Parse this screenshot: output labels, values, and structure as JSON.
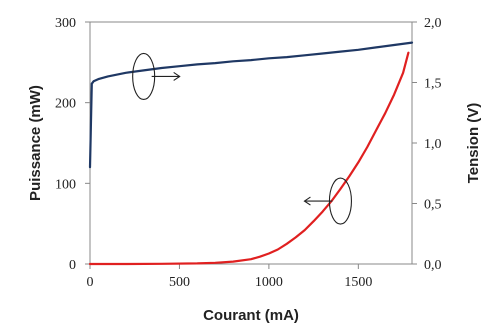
{
  "chart_data": {
    "type": "line",
    "title": "",
    "xlabel": "Courant (mA)",
    "ylabel_left": "Puissance (mW)",
    "ylabel_right": "Tension (V)",
    "xlim": [
      0,
      1800
    ],
    "ylim_left": [
      0,
      300
    ],
    "ylim_right": [
      0,
      2.0
    ],
    "x_ticks": [
      0,
      500,
      1000,
      1500
    ],
    "x_tick_labels": [
      "0",
      "500",
      "1000",
      "1500"
    ],
    "y_left_ticks": [
      0,
      100,
      200,
      300
    ],
    "y_left_tick_labels": [
      "0",
      "100",
      "200",
      "300"
    ],
    "y_right_ticks": [
      0,
      0.5,
      1.0,
      1.5,
      2.0
    ],
    "y_right_tick_labels": [
      "0,0",
      "0,5",
      "1,0",
      "1,5",
      "2,0"
    ],
    "grid": false,
    "series": [
      {
        "axis": "right",
        "color": "#1f3864",
        "x": [
          0,
          10,
          20,
          50,
          100,
          200,
          300,
          400,
          500,
          600,
          700,
          800,
          900,
          1000,
          1100,
          1200,
          1300,
          1400,
          1500,
          1600,
          1700,
          1800
        ],
        "y": [
          0.8,
          1.49,
          1.51,
          1.53,
          1.55,
          1.58,
          1.6,
          1.62,
          1.635,
          1.65,
          1.66,
          1.675,
          1.685,
          1.7,
          1.71,
          1.725,
          1.74,
          1.755,
          1.77,
          1.79,
          1.81,
          1.83
        ]
      },
      {
        "axis": "left",
        "color": "#e02020",
        "x": [
          0,
          200,
          400,
          600,
          700,
          800,
          900,
          950,
          1000,
          1050,
          1100,
          1150,
          1200,
          1250,
          1300,
          1350,
          1400,
          1450,
          1500,
          1550,
          1600,
          1650,
          1700,
          1750,
          1780
        ],
        "y": [
          0,
          0,
          0.3,
          0.8,
          1.5,
          3,
          6,
          9,
          13,
          18,
          25,
          33,
          42,
          53,
          65,
          78,
          93,
          109,
          126,
          145,
          166,
          187,
          210,
          237,
          262
        ]
      }
    ],
    "annotations": [
      {
        "shape": "ellipse",
        "at": [
          300,
          1.55
        ],
        "arrow_direction": "right"
      },
      {
        "shape": "ellipse",
        "at": [
          1400,
          78
        ],
        "arrow_direction": "left"
      }
    ]
  }
}
